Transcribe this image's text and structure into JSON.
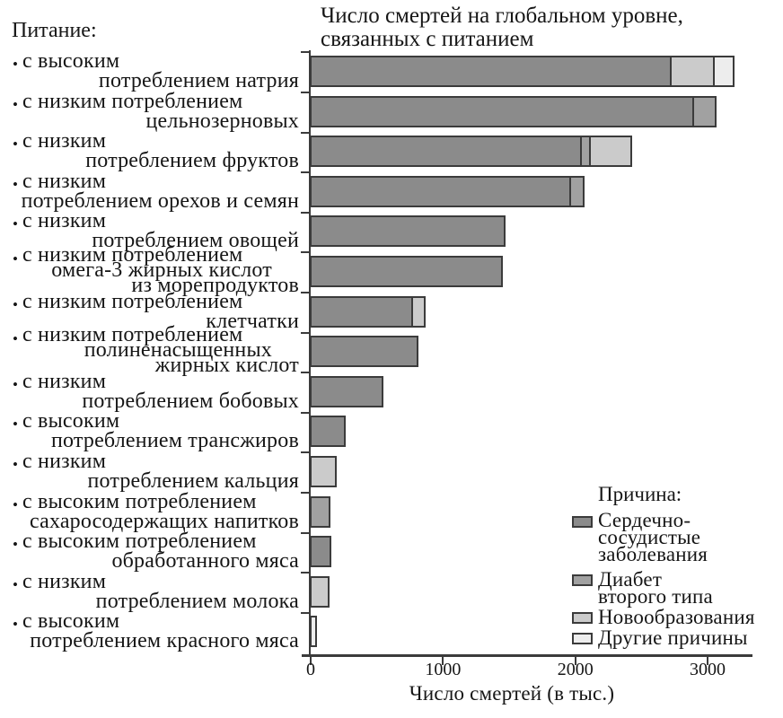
{
  "title": {
    "line1": "Число смертей на глобальном уровне,",
    "line2": "связанных с питанием"
  },
  "diet_header": "Питание:",
  "xlabel": "Число смертей (в тыс.)",
  "legend": {
    "title": "Причина:",
    "items": [
      {
        "key": "cvd",
        "color": "#8b8b8b",
        "label_lines": [
          "Сердечно-",
          "сосудистые",
          "заболевания"
        ]
      },
      {
        "key": "diabetes",
        "color": "#a1a1a1",
        "label_lines": [
          "Диабет",
          "второго типа"
        ]
      },
      {
        "key": "neoplasms",
        "color": "#cbcbcb",
        "label_lines": [
          "Новообразования"
        ]
      },
      {
        "key": "other",
        "color": "#ededed",
        "label_lines": [
          "Другие причины"
        ]
      }
    ]
  },
  "colors": {
    "cvd": "#8b8b8b",
    "diabetes": "#a1a1a1",
    "neoplasms": "#cbcbcb",
    "other": "#ededed",
    "border": "#3b3b3b",
    "text": "#161616"
  },
  "chart_data": {
    "type": "bar",
    "orientation": "horizontal",
    "stacked": true,
    "title": "Число смертей на глобальном уровне, связанных с питанием",
    "xlabel": "Число смертей (в тыс.)",
    "units": "thousands of deaths",
    "xlim": [
      0,
      3325
    ],
    "x_ticks": [
      0,
      1000,
      2000,
      3000
    ],
    "categories": [
      {
        "lines": [
          "с высоким",
          "потреблением натрия"
        ],
        "name": "с высоким потреблением натрия"
      },
      {
        "lines": [
          "с низким потреблением",
          "цельнозерновых"
        ],
        "name": "с низким потреблением цельнозерновых"
      },
      {
        "lines": [
          "с низким",
          "потреблением фруктов"
        ],
        "name": "с низким потреблением фруктов"
      },
      {
        "lines": [
          "с низким",
          "потреблением орехов и семян"
        ],
        "name": "с низким потреблением орехов и семян"
      },
      {
        "lines": [
          "с низким",
          "потреблением овощей"
        ],
        "name": "с низким потреблением овощей"
      },
      {
        "lines": [
          "с низким потреблением",
          "омега-3 жирных кислот",
          "из морепродуктов"
        ],
        "name": "с низким потреблением омега-3 жирных кислот из морепродуктов"
      },
      {
        "lines": [
          "с низким потреблением",
          "клетчатки"
        ],
        "name": "с низким потреблением клетчатки"
      },
      {
        "lines": [
          "с низким потреблением",
          "полиненасыщенных",
          "жирных кислот"
        ],
        "name": "с низким потреблением полиненасыщенных жирных кислот"
      },
      {
        "lines": [
          "с низким",
          "потреблением бобовых"
        ],
        "name": "с низким потреблением бобовых"
      },
      {
        "lines": [
          "с высоким",
          "потреблением трансжиров"
        ],
        "name": "с высоким потреблением трансжиров"
      },
      {
        "lines": [
          "с низким",
          "потреблением кальция"
        ],
        "name": "с низким потреблением кальция"
      },
      {
        "lines": [
          "с высоким потреблением",
          "сахаросодержащих напитков"
        ],
        "name": "с высоким потреблением сахаросодержащих напитков"
      },
      {
        "lines": [
          "с высоким потреблением",
          "обработанного мяса"
        ],
        "name": "с высоким потреблением обработанного мяса"
      },
      {
        "lines": [
          "с низким",
          "потреблением молока"
        ],
        "name": "с низким потреблением молока"
      },
      {
        "lines": [
          "с высоким",
          "потреблением красного мяса"
        ],
        "name": "с высоким потреблением красного мяса"
      }
    ],
    "series": [
      {
        "name": "Сердечно-сосудистые заболевания",
        "key": "cvd",
        "values": [
          2720,
          2890,
          2045,
          1960,
          1465,
          1445,
          765,
          805,
          545,
          260,
          0,
          0,
          150,
          0,
          0
        ]
      },
      {
        "name": "Диабет второго типа",
        "key": "diabetes",
        "values": [
          0,
          170,
          65,
          100,
          0,
          0,
          0,
          0,
          0,
          0,
          0,
          145,
          0,
          0,
          0
        ]
      },
      {
        "name": "Новообразования",
        "key": "neoplasms",
        "values": [
          330,
          0,
          315,
          0,
          0,
          0,
          100,
          0,
          0,
          0,
          190,
          0,
          0,
          135,
          0
        ]
      },
      {
        "name": "Другие причины",
        "key": "other",
        "values": [
          145,
          0,
          0,
          0,
          0,
          0,
          0,
          0,
          0,
          0,
          0,
          0,
          0,
          0,
          40
        ]
      }
    ]
  }
}
